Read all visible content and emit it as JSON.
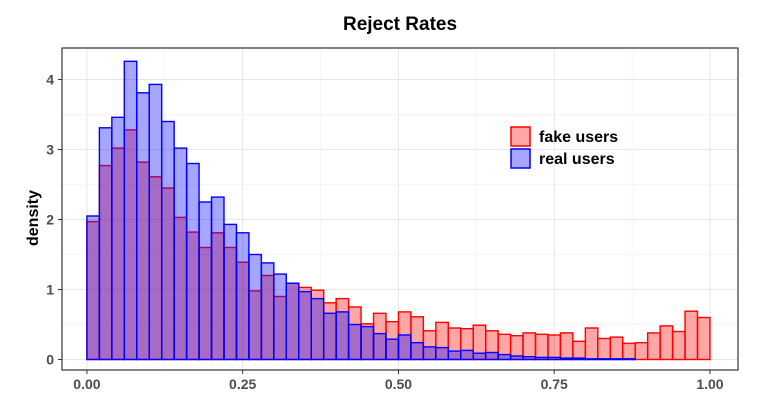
{
  "chart_data": {
    "type": "histogram",
    "title": "Reject Rates",
    "xlabel": "",
    "ylabel": "density",
    "xlim": [
      -0.04,
      1.045
    ],
    "ylim": [
      -0.15,
      4.45
    ],
    "x_ticks": [
      "0.00",
      "0.25",
      "0.50",
      "0.75",
      "1.00"
    ],
    "x_tick_values": [
      0,
      0.25,
      0.5,
      0.75,
      1.0
    ],
    "y_ticks": [
      "0",
      "1",
      "2",
      "3",
      "4"
    ],
    "y_tick_values": [
      0,
      1,
      2,
      3,
      4
    ],
    "grid": true,
    "legend_position": "top-right",
    "bin_width": 0.02,
    "bin_start": 0.0,
    "series": [
      {
        "name": "fake users",
        "fill": "#ff0000",
        "stroke": "#ff0000",
        "values": [
          1.97,
          2.77,
          3.02,
          3.28,
          2.82,
          2.61,
          2.45,
          2.03,
          1.82,
          1.6,
          1.81,
          1.6,
          1.39,
          0.98,
          1.2,
          0.9,
          1.09,
          1.03,
          0.99,
          0.81,
          0.87,
          0.75,
          0.51,
          0.66,
          0.54,
          0.68,
          0.61,
          0.41,
          0.53,
          0.45,
          0.44,
          0.49,
          0.41,
          0.36,
          0.34,
          0.38,
          0.36,
          0.35,
          0.38,
          0.26,
          0.45,
          0.3,
          0.32,
          0.23,
          0.24,
          0.38,
          0.48,
          0.4,
          0.69,
          0.6
        ]
      },
      {
        "name": "real users",
        "fill": "#0000ff",
        "stroke": "#0000ff",
        "values": [
          2.05,
          3.31,
          3.46,
          4.26,
          3.81,
          3.93,
          3.4,
          3.02,
          2.8,
          2.25,
          2.32,
          1.93,
          1.81,
          1.5,
          1.38,
          1.22,
          1.09,
          0.97,
          0.87,
          0.66,
          0.68,
          0.5,
          0.47,
          0.37,
          0.29,
          0.35,
          0.24,
          0.18,
          0.17,
          0.12,
          0.13,
          0.09,
          0.1,
          0.07,
          0.05,
          0.04,
          0.03,
          0.03,
          0.02,
          0.02,
          0.01,
          0.01,
          0.01,
          0.01,
          0.0,
          0.0,
          0.0,
          0.0,
          0.0,
          0.0
        ]
      }
    ]
  }
}
